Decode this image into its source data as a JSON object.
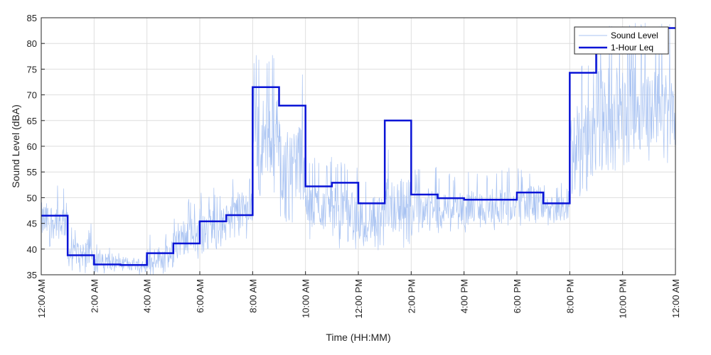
{
  "chart_data": {
    "type": "line",
    "xlabel": "Time (HH:MM)",
    "ylabel": "Sound Level (dBA)",
    "xlim": [
      0,
      24
    ],
    "ylim": [
      35,
      85
    ],
    "grid": true,
    "legend_position": "top-right",
    "x_ticks": [
      0,
      2,
      4,
      6,
      8,
      10,
      12,
      14,
      16,
      18,
      20,
      22,
      24
    ],
    "x_tick_labels": [
      "12:00 AM",
      "2:00 AM",
      "4:00 AM",
      "6:00 AM",
      "8:00 AM",
      "10:00 AM",
      "12:00 PM",
      "2:00 PM",
      "4:00 PM",
      "6:00 PM",
      "8:00 PM",
      "10:00 PM",
      "12:00 AM"
    ],
    "y_ticks": [
      35,
      40,
      45,
      50,
      55,
      60,
      65,
      70,
      75,
      80,
      85
    ],
    "y_tick_labels": [
      "35",
      "40",
      "45",
      "50",
      "55",
      "60",
      "65",
      "70",
      "75",
      "80",
      "85"
    ],
    "series": [
      {
        "name": "Sound Level",
        "color": "#a9c3f2",
        "style": "thin-line",
        "hourly_envelope": [
          {
            "hour": 0,
            "low": 40,
            "high": 53
          },
          {
            "hour": 1,
            "low": 35,
            "high": 45
          },
          {
            "hour": 2,
            "low": 35,
            "high": 41
          },
          {
            "hour": 3,
            "low": 35,
            "high": 40
          },
          {
            "hour": 4,
            "low": 35,
            "high": 43
          },
          {
            "hour": 5,
            "low": 37,
            "high": 50
          },
          {
            "hour": 6,
            "low": 39,
            "high": 52
          },
          {
            "hour": 7,
            "low": 42,
            "high": 55
          },
          {
            "hour": 8,
            "low": 50,
            "high": 78
          },
          {
            "hour": 9,
            "low": 45,
            "high": 74
          },
          {
            "hour": 10,
            "low": 41,
            "high": 58
          },
          {
            "hour": 11,
            "low": 40,
            "high": 57
          },
          {
            "hour": 12,
            "low": 39,
            "high": 55
          },
          {
            "hour": 13,
            "low": 40,
            "high": 60
          },
          {
            "hour": 14,
            "low": 42,
            "high": 56
          },
          {
            "hour": 15,
            "low": 43,
            "high": 55
          },
          {
            "hour": 16,
            "low": 43,
            "high": 55
          },
          {
            "hour": 17,
            "low": 43,
            "high": 56
          },
          {
            "hour": 18,
            "low": 44,
            "high": 56
          },
          {
            "hour": 19,
            "low": 44,
            "high": 53
          },
          {
            "hour": 20,
            "low": 50,
            "high": 76
          },
          {
            "hour": 21,
            "low": 55,
            "high": 84
          },
          {
            "hour": 22,
            "low": 55,
            "high": 84
          },
          {
            "hour": 23,
            "low": 56,
            "high": 84
          }
        ]
      },
      {
        "name": "1-Hour Leq",
        "color": "#0a14d6",
        "style": "step",
        "x": [
          0,
          1,
          2,
          3,
          4,
          5,
          6,
          7,
          8,
          9,
          10,
          11,
          12,
          13,
          14,
          15,
          16,
          17,
          18,
          19,
          20,
          21,
          22,
          23
        ],
        "values": [
          46.5,
          38.8,
          37.0,
          36.9,
          39.2,
          41.1,
          45.4,
          46.6,
          71.5,
          67.9,
          52.2,
          52.9,
          48.9,
          65.0,
          50.6,
          49.9,
          49.6,
          49.6,
          51.0,
          48.9,
          74.3,
          80.0,
          83.0,
          83.0
        ]
      }
    ]
  }
}
